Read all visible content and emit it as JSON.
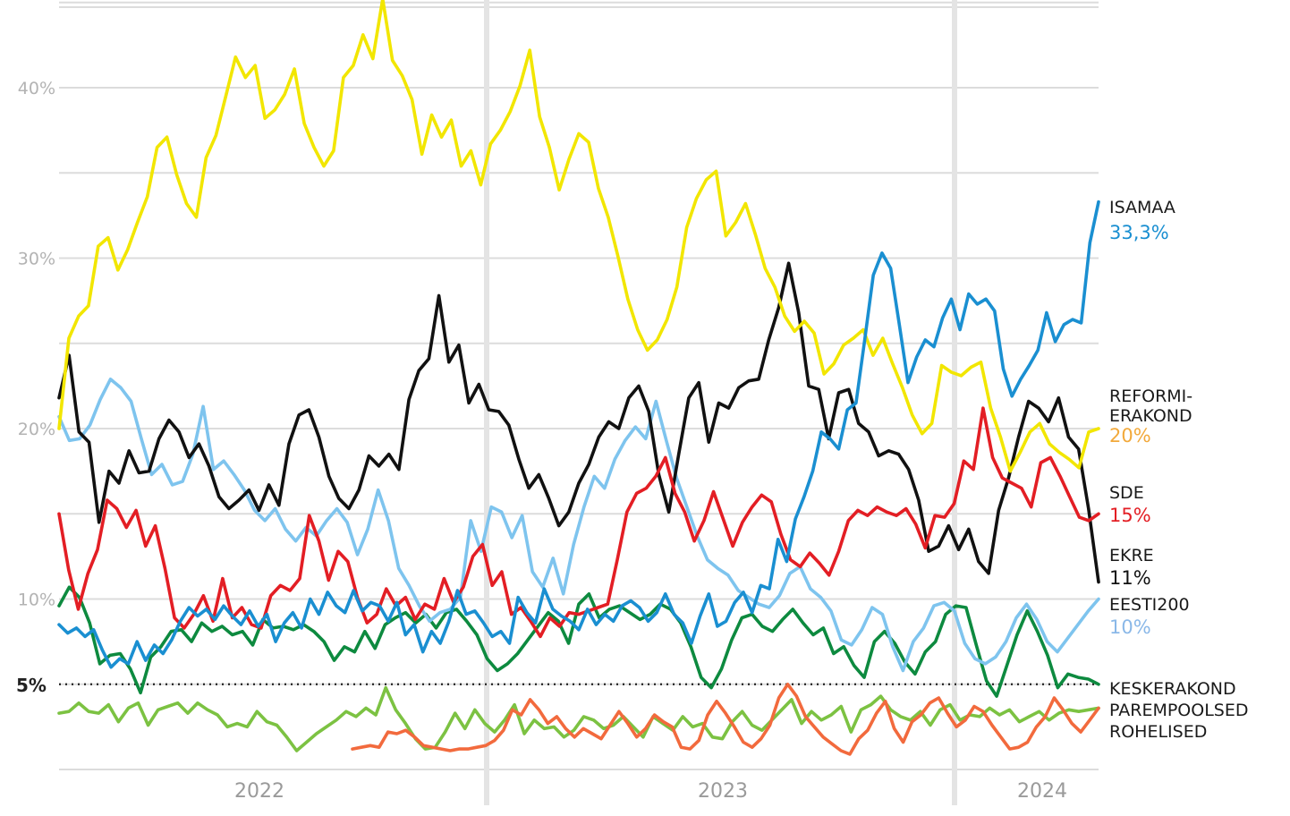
{
  "chart_data": {
    "type": "line",
    "title": "",
    "xlabel": "",
    "ylabel": "",
    "ylim": [
      0,
      45
    ],
    "y_ticks": [
      "10%",
      "20%",
      "30%",
      "40%"
    ],
    "x_period_labels": [
      "2022",
      "2023",
      "2024"
    ],
    "grid": true,
    "legend_placement": "right",
    "threshold": {
      "value": 5,
      "label": "5%"
    },
    "x_start": "2021-06",
    "x_end": "2024-03",
    "series": [
      {
        "name": "ISAMAA",
        "color": "#1a8fd1",
        "end_label": "33,3%",
        "values": [
          8.5,
          8,
          8.3,
          7.8,
          8.2,
          7,
          6,
          6.5,
          6.2,
          7.5,
          6.4,
          7.3,
          6.8,
          7.6,
          8.7,
          9.5,
          9,
          9.4,
          8.8,
          9.6,
          9,
          8.5,
          9.3,
          8.4,
          9.1,
          7.5,
          8.6,
          9.2,
          8.3,
          10,
          9.1,
          10.4,
          9.6,
          9.2,
          10.5,
          9.3,
          9.8,
          9.6,
          8.7,
          9.8,
          7.9,
          8.5,
          6.9,
          8.1,
          7.4,
          8.7,
          10.5,
          9.1,
          9.3,
          8.6,
          7.8,
          8.1,
          7.4,
          10.1,
          9.2,
          8.6,
          10.6,
          9.4,
          9,
          8.7,
          8.2,
          9.4,
          8.5,
          9.1,
          8.7,
          9.6,
          9.9,
          9.5,
          8.7,
          9.2,
          10.3,
          9.1,
          8.6,
          7.4,
          9,
          10.3,
          8.4,
          8.7,
          9.8,
          10.4,
          9.2,
          10.8,
          10.6,
          13.5,
          12.2,
          14.7,
          16,
          17.5,
          19.8,
          19.4,
          18.8,
          21.1,
          21.5,
          25.2,
          29,
          30.3,
          29.4,
          26.1,
          22.7,
          24.2,
          25.2,
          24.8,
          26.5,
          27.6,
          25.8,
          27.9,
          27.3,
          27.6,
          26.9,
          23.5,
          21.9,
          22.9,
          23.7,
          24.6,
          26.8,
          25.1,
          26.1,
          26.4,
          26.2,
          30.9,
          33.3
        ]
      },
      {
        "name": "REFORMIERAKOND",
        "color": "#f2e600",
        "end_label": "20%",
        "values": [
          20,
          25.3,
          26.6,
          27.2,
          30.7,
          31.2,
          29.3,
          30.5,
          32.1,
          33.6,
          36.5,
          37.1,
          34.9,
          33.2,
          32.4,
          35.9,
          37.2,
          39.5,
          41.8,
          40.6,
          41.3,
          38.2,
          38.7,
          39.6,
          41.1,
          37.9,
          36.5,
          35.4,
          36.3,
          40.6,
          41.3,
          43.1,
          41.7,
          45.2,
          41.6,
          40.7,
          39.3,
          36.1,
          38.4,
          37.1,
          38.1,
          35.4,
          36.3,
          34.3,
          36.7,
          37.5,
          38.6,
          40.1,
          42.2,
          38.3,
          36.5,
          34,
          35.8,
          37.3,
          36.8,
          34.1,
          32.4,
          30.1,
          27.6,
          25.8,
          24.6,
          25.2,
          26.4,
          28.3,
          31.8,
          33.5,
          34.6,
          35.1,
          31.3,
          32.1,
          33.2,
          31.4,
          29.4,
          28.3,
          26.6,
          25.7,
          26.3,
          25.6,
          23.2,
          23.8,
          24.9,
          25.3,
          25.8,
          24.3,
          25.3,
          23.8,
          22.4,
          20.8,
          19.7,
          20.3,
          23.7,
          23.3,
          23.1,
          23.6,
          23.9,
          21.2,
          19.5,
          17.5,
          18.6,
          19.8,
          20.3,
          19.1,
          18.6,
          18.2,
          17.7,
          19.8,
          20
        ]
      },
      {
        "name": "SDE",
        "color": "#e31e24",
        "end_label": "15%",
        "values": [
          15,
          11.7,
          9.4,
          11.5,
          12.9,
          15.8,
          15.3,
          14.2,
          15.2,
          13.1,
          14.3,
          11.8,
          8.9,
          8.3,
          9.1,
          10.2,
          8.7,
          11.2,
          8.9,
          9.5,
          8.5,
          8.3,
          10.2,
          10.8,
          10.5,
          11.2,
          14.9,
          13.4,
          11.1,
          12.8,
          12.2,
          10.1,
          8.6,
          9.1,
          10.6,
          9.6,
          10.1,
          8.8,
          9.7,
          9.4,
          11.2,
          9.8,
          10.7,
          12.5,
          13.2,
          10.8,
          11.6,
          9.1,
          9.5,
          8.7,
          7.8,
          8.9,
          8.4,
          9.2,
          9.1,
          9.3,
          9.5,
          9.7,
          12.3,
          15.1,
          16.2,
          16.5,
          17.2,
          18.3,
          16.2,
          15.1,
          13.4,
          14.6,
          16.3,
          14.7,
          13.1,
          14.5,
          15.4,
          16.1,
          15.7,
          13.8,
          12.3,
          11.9,
          12.7,
          12.1,
          11.4,
          12.8,
          14.6,
          15.2,
          14.9,
          15.4,
          15.1,
          14.9,
          15.3,
          14.4,
          13,
          14.9,
          14.8,
          15.6,
          18.1,
          17.6,
          21.2,
          18.3,
          17.1,
          16.8,
          16.5,
          15.4,
          18,
          18.3,
          17.2,
          16,
          14.8,
          14.6,
          15
        ]
      },
      {
        "name": "EKRE",
        "color": "#111111",
        "end_label": "11%",
        "values": [
          21.8,
          24.3,
          19.8,
          19.2,
          14.5,
          17.5,
          16.8,
          18.7,
          17.4,
          17.5,
          19.4,
          20.5,
          19.8,
          18.3,
          19.1,
          17.8,
          16,
          15.3,
          15.8,
          16.4,
          15.2,
          16.7,
          15.5,
          19.1,
          20.8,
          21.1,
          19.5,
          17.2,
          15.9,
          15.3,
          16.4,
          18.4,
          17.8,
          18.5,
          17.6,
          21.7,
          23.4,
          24.1,
          27.8,
          23.9,
          24.9,
          21.5,
          22.6,
          21.1,
          21,
          20.2,
          18.2,
          16.5,
          17.3,
          15.9,
          14.3,
          15.1,
          16.8,
          17.9,
          19.5,
          20.4,
          20,
          21.8,
          22.5,
          21,
          17.3,
          15.1,
          18.5,
          21.8,
          22.7,
          19.2,
          21.5,
          21.2,
          22.4,
          22.8,
          22.9,
          25.2,
          27.1,
          29.7,
          26.8,
          22.5,
          22.3,
          19.4,
          22.1,
          22.3,
          20.3,
          19.8,
          18.4,
          18.7,
          18.5,
          17.6,
          15.8,
          12.8,
          13.1,
          14.3,
          12.9,
          14.1,
          12.2,
          11.5,
          15.2,
          17.1,
          19.5,
          21.6,
          21.2,
          20.4,
          21.8,
          19.5,
          18.8,
          15.3,
          11
        ]
      },
      {
        "name": "EESTI200",
        "color": "#7ec4ee",
        "end_label": "10%",
        "values": [
          20.7,
          19.3,
          19.4,
          20.2,
          21.7,
          22.9,
          22.4,
          21.6,
          19.4,
          17.3,
          17.9,
          16.7,
          16.9,
          18.5,
          21.3,
          17.6,
          18.1,
          17.3,
          16.4,
          15.2,
          14.6,
          15.3,
          14.1,
          13.4,
          14.2,
          13.7,
          14.6,
          15.3,
          14.5,
          12.6,
          14.1,
          16.4,
          14.6,
          11.8,
          10.8,
          9.6,
          8.7,
          9.2,
          9.4,
          10.1,
          14.6,
          12.8,
          15.4,
          15.1,
          13.6,
          14.9,
          11.6,
          10.7,
          12.4,
          10.3,
          13.2,
          15.4,
          17.2,
          16.5,
          18.2,
          19.3,
          20.1,
          19.4,
          21.6,
          19.3,
          17.1,
          15.4,
          13.7,
          12.3,
          11.8,
          11.4,
          10.5,
          10.1,
          9.7,
          9.5,
          10.2,
          11.5,
          11.9,
          10.6,
          10.1,
          9.3,
          7.6,
          7.3,
          8.2,
          9.5,
          9.1,
          7.2,
          5.8,
          7.5,
          8.3,
          9.6,
          9.8,
          9.3,
          7.4,
          6.5,
          6.2,
          6.6,
          7.5,
          8.9,
          9.7,
          8.8,
          7.5,
          6.9,
          7.7,
          8.5,
          9.3,
          10
        ]
      },
      {
        "name": "KESKERAKOND",
        "color": "#0d8a3f",
        "end_label": "",
        "values": [
          9.6,
          10.7,
          10.1,
          8.6,
          6.2,
          6.7,
          6.8,
          5.9,
          4.5,
          6.6,
          7.2,
          8.1,
          8.2,
          7.5,
          8.6,
          8.1,
          8.4,
          7.9,
          8.1,
          7.3,
          8.8,
          8.3,
          8.4,
          8.2,
          8.5,
          8.1,
          7.5,
          6.4,
          7.2,
          6.9,
          8.1,
          7.1,
          8.5,
          8.9,
          9.2,
          8.6,
          9.1,
          8.3,
          9.2,
          9.4,
          8.7,
          7.9,
          6.5,
          5.8,
          6.2,
          6.8,
          7.6,
          8.4,
          9.2,
          8.7,
          7.4,
          9.7,
          10.3,
          8.9,
          9.4,
          9.6,
          9.2,
          8.8,
          9.1,
          9.7,
          9.4,
          8.6,
          7.2,
          5.4,
          4.8,
          5.9,
          7.6,
          8.9,
          9.1,
          8.4,
          8.1,
          8.8,
          9.4,
          8.6,
          7.9,
          8.3,
          6.8,
          7.2,
          6.1,
          5.4,
          7.5,
          8.1,
          7.4,
          6.3,
          5.6,
          6.9,
          7.5,
          9.1,
          9.6,
          9.5,
          7.3,
          5.2,
          4.3,
          6.1,
          7.9,
          9.3,
          8.1,
          6.7,
          4.8,
          5.6,
          5.4,
          5.3,
          5
        ]
      },
      {
        "name": "PAREMPOOLSED",
        "color": "#f26a3d",
        "end_label": "",
        "values": [
          1.2,
          1.3,
          1.4,
          1.3,
          2.2,
          2.1,
          2.3,
          1.9,
          1.4,
          1.3,
          1.2,
          1.1,
          1.2,
          1.2,
          1.3,
          1.4,
          1.7,
          2.3,
          3.5,
          3.2,
          4.1,
          3.5,
          2.7,
          3.1,
          2.4,
          1.9,
          2.4,
          2.1,
          1.8,
          2.6,
          3.4,
          2.7,
          1.9,
          2.4,
          3.2,
          2.8,
          2.5,
          1.3,
          1.2,
          1.7,
          3.2,
          4,
          3.3,
          2.5,
          1.6,
          1.3,
          1.8,
          2.6,
          4.2,
          5,
          4.3,
          3.1,
          2.5,
          1.9,
          1.5,
          1.1,
          0.9,
          1.8,
          2.3,
          3.3,
          4,
          2.4,
          1.6,
          2.8,
          3.2,
          3.9,
          4.2,
          3.3,
          2.5,
          2.9,
          3.7,
          3.4,
          2.6,
          1.9,
          1.2,
          1.3,
          1.6,
          2.5,
          3.1,
          4.2,
          3.5,
          2.7,
          2.2,
          2.9,
          3.6
        ]
      }
    ],
    "extra_series": [
      {
        "name": "ROHELISED",
        "color": "#7cc242",
        "end_label": "",
        "values": [
          3.3,
          3.4,
          3.9,
          3.4,
          3.3,
          3.8,
          2.8,
          3.6,
          3.9,
          2.6,
          3.5,
          3.7,
          3.9,
          3.3,
          3.9,
          3.5,
          3.2,
          2.5,
          2.7,
          2.5,
          3.4,
          2.8,
          2.6,
          1.9,
          1.1,
          1.6,
          2.1,
          2.5,
          2.9,
          3.4,
          3.1,
          3.6,
          3.2,
          4.8,
          3.5,
          2.7,
          1.8,
          1.2,
          1.3,
          2.2,
          3.3,
          2.4,
          3.5,
          2.7,
          2.2,
          2.9,
          3.8,
          2.1,
          2.9,
          2.4,
          2.5,
          1.9,
          2.3,
          3.1,
          2.9,
          2.4,
          2.6,
          3.1,
          2.5,
          1.9,
          3.1,
          2.7,
          2.3,
          3.1,
          2.5,
          2.7,
          1.9,
          1.8,
          2.8,
          3.4,
          2.6,
          2.3,
          2.9,
          3.5,
          4.1,
          2.7,
          3.4,
          2.9,
          3.2,
          3.7,
          2.2,
          3.5,
          3.8,
          4.3,
          3.5,
          3.1,
          2.9,
          3.4,
          2.6,
          3.5,
          3.8,
          2.9,
          3.2,
          3.1,
          3.6,
          3.2,
          3.5,
          2.8,
          3.1,
          3.4,
          2.9,
          3.3,
          3.5,
          3.4,
          3.5,
          3.6
        ]
      }
    ],
    "legend": [
      {
        "name": "ISAMAA",
        "value": "33,3%",
        "color": "#1a8fd1"
      },
      {
        "name": "REFORMI-",
        "name2": "ERAKOND",
        "value": "20%",
        "color": "#f2a93b"
      },
      {
        "name": "SDE",
        "value": "15%",
        "color": "#e31e24"
      },
      {
        "name": "EKRE",
        "value": "11%",
        "color": "#111111"
      },
      {
        "name": "EESTI200",
        "value": "10%",
        "color": "#8ab8e8"
      },
      {
        "name": "KESKERAKOND",
        "value": "",
        "color": "#111111"
      },
      {
        "name": "PAREMPOOLSED",
        "value": "",
        "color": "#111111"
      },
      {
        "name": "ROHELISED",
        "value": "",
        "color": "#111111"
      }
    ]
  }
}
